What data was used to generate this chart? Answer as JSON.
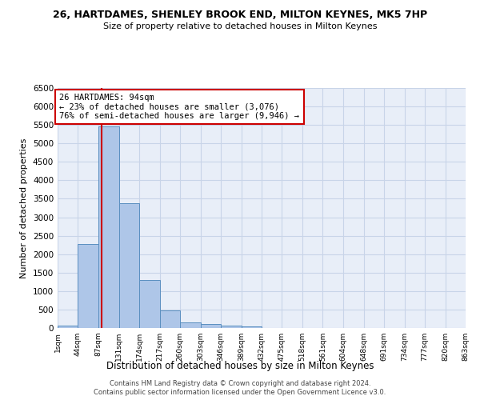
{
  "title": "26, HARTDAMES, SHENLEY BROOK END, MILTON KEYNES, MK5 7HP",
  "subtitle": "Size of property relative to detached houses in Milton Keynes",
  "xlabel": "Distribution of detached houses by size in Milton Keynes",
  "ylabel": "Number of detached properties",
  "footer_line1": "Contains HM Land Registry data © Crown copyright and database right 2024.",
  "footer_line2": "Contains public sector information licensed under the Open Government Licence v3.0.",
  "bin_edges": [
    1,
    44,
    87,
    131,
    174,
    217,
    260,
    303,
    346,
    389,
    432,
    475,
    518,
    561,
    604,
    648,
    691,
    734,
    777,
    820,
    863
  ],
  "bar_heights": [
    75,
    2280,
    5450,
    3380,
    1300,
    480,
    160,
    100,
    75,
    50,
    0,
    0,
    0,
    0,
    0,
    0,
    0,
    0,
    0,
    0
  ],
  "bar_color": "#aec6e8",
  "bar_edge_color": "#5a8fc0",
  "grid_color": "#c8d4e8",
  "background_color": "#e8eef8",
  "property_size": 94,
  "annotation_title": "26 HARTDAMES: 94sqm",
  "annotation_line1": "← 23% of detached houses are smaller (3,076)",
  "annotation_line2": "76% of semi-detached houses are larger (9,946) →",
  "vline_color": "#cc0000",
  "annotation_box_color": "#cc0000",
  "ylim": [
    0,
    6500
  ],
  "yticks": [
    0,
    500,
    1000,
    1500,
    2000,
    2500,
    3000,
    3500,
    4000,
    4500,
    5000,
    5500,
    6000,
    6500
  ]
}
